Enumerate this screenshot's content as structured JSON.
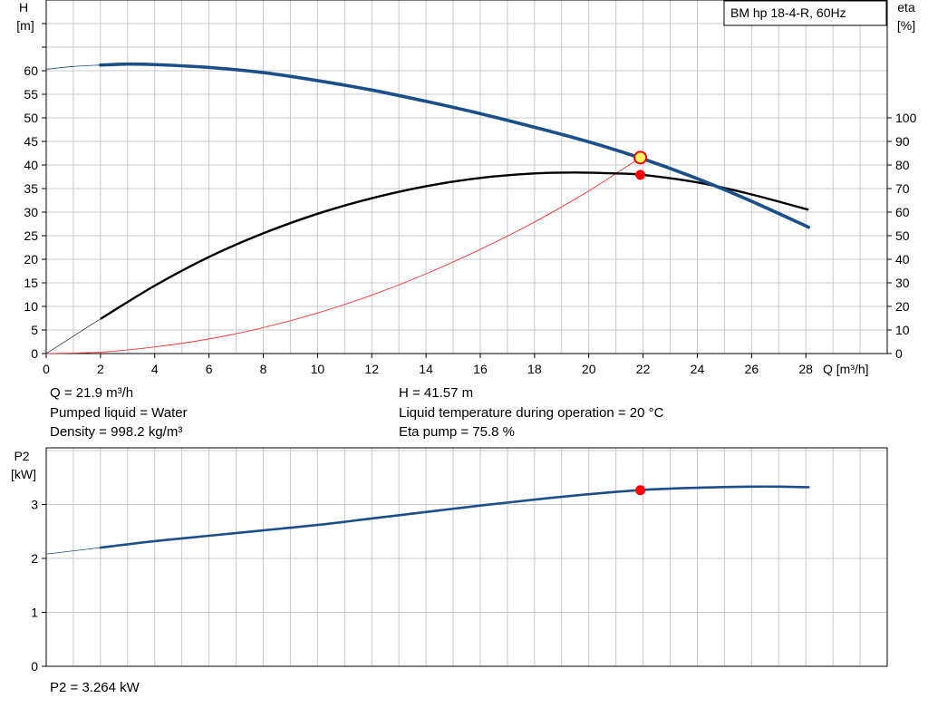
{
  "legend": "BM hp  18-4-R, 60Hz",
  "colors": {
    "head_curve": "#1b4f8a",
    "eta_curve": "#000000",
    "system_curve": "#ff3333",
    "power_curve": "#1b4f8a",
    "grid": "#c8c8c8",
    "duty_point": "#ff0000",
    "duty_point_head": "#ffff66"
  },
  "chart_data": [
    {
      "type": "line",
      "id": "performance",
      "x_label": "Q [m³/h]",
      "y_label_line1": "H",
      "y_label_line2": "[m]",
      "y2_label_line1": "eta",
      "y2_label_line2": "[%]",
      "xlim": [
        0,
        31
      ],
      "ylim": [
        0,
        75
      ],
      "y2lim": [
        0,
        150
      ],
      "x_ticks": [
        0,
        2,
        4,
        6,
        8,
        10,
        12,
        14,
        16,
        18,
        20,
        22,
        24,
        26,
        28
      ],
      "y_ticks": [
        0,
        5,
        10,
        15,
        20,
        25,
        30,
        35,
        40,
        45,
        50,
        55,
        60
      ],
      "y2_ticks": [
        0,
        10,
        20,
        30,
        40,
        50,
        60,
        70,
        80,
        90,
        100
      ],
      "grid": true,
      "legend_position": "top-right",
      "series": [
        {
          "key": "head",
          "axis": "left",
          "x": [
            2,
            3,
            4,
            6,
            8,
            10,
            12,
            14,
            16,
            18,
            20,
            22,
            24,
            26,
            28.1
          ],
          "y": [
            61.2,
            61.4,
            61.3,
            60.7,
            59.6,
            57.9,
            55.9,
            53.5,
            50.9,
            48.0,
            44.9,
            41.3,
            37.1,
            32.3,
            26.8
          ],
          "extension_x": [
            0,
            1,
            2
          ],
          "extension_y": [
            60.3,
            60.9,
            61.2
          ]
        },
        {
          "key": "eta",
          "axis": "right",
          "x": [
            2,
            4,
            6,
            8,
            10,
            12,
            14,
            16,
            18,
            19.5,
            21,
            22,
            24,
            26,
            28.1
          ],
          "y": [
            14.7,
            28.8,
            41.0,
            51.0,
            59.3,
            65.9,
            71.0,
            74.5,
            76.4,
            76.8,
            76.4,
            75.8,
            72.6,
            67.5,
            61.0
          ],
          "extension_x": [
            0,
            2
          ],
          "extension_y": [
            0,
            14.7
          ]
        },
        {
          "key": "system",
          "axis": "left",
          "x": [
            0,
            2,
            4,
            6,
            8,
            10,
            12,
            14,
            16,
            18,
            20,
            21.9
          ],
          "y": [
            0,
            0.3,
            1.4,
            3.1,
            5.5,
            8.6,
            12.4,
            16.9,
            22.1,
            27.9,
            34.5,
            41.57
          ]
        }
      ],
      "duty_point": {
        "Q": 21.9,
        "H": 41.57,
        "eta": 75.8
      }
    },
    {
      "type": "line",
      "id": "power",
      "y_label_line1": "P2",
      "y_label_line2": "[kW]",
      "xlim": [
        0,
        31
      ],
      "ylim": [
        0,
        4.05
      ],
      "y_ticks": [
        0,
        1,
        2,
        3
      ],
      "grid": true,
      "series": [
        {
          "key": "p2",
          "x": [
            2,
            4,
            6,
            8,
            10,
            12,
            14,
            16,
            18,
            20,
            22,
            24,
            26,
            27,
            28.1
          ],
          "y": [
            2.2,
            2.32,
            2.42,
            2.52,
            2.62,
            2.74,
            2.86,
            2.98,
            3.09,
            3.19,
            3.27,
            3.31,
            3.33,
            3.33,
            3.32
          ],
          "extension_x": [
            0,
            2
          ],
          "extension_y": [
            2.08,
            2.2
          ]
        }
      ],
      "duty_point": {
        "Q": 21.9,
        "P2": 3.264
      }
    }
  ],
  "info": {
    "q": "Q = 21.9 m³/h",
    "liquid": "Pumped liquid = Water",
    "density": "Density = 998.2 kg/m³",
    "h": "H = 41.57 m",
    "temp": "Liquid temperature during operation = 20 °C",
    "eta": "Eta pump = 75.8 %",
    "p2": "P2 = 3.264 kW"
  }
}
